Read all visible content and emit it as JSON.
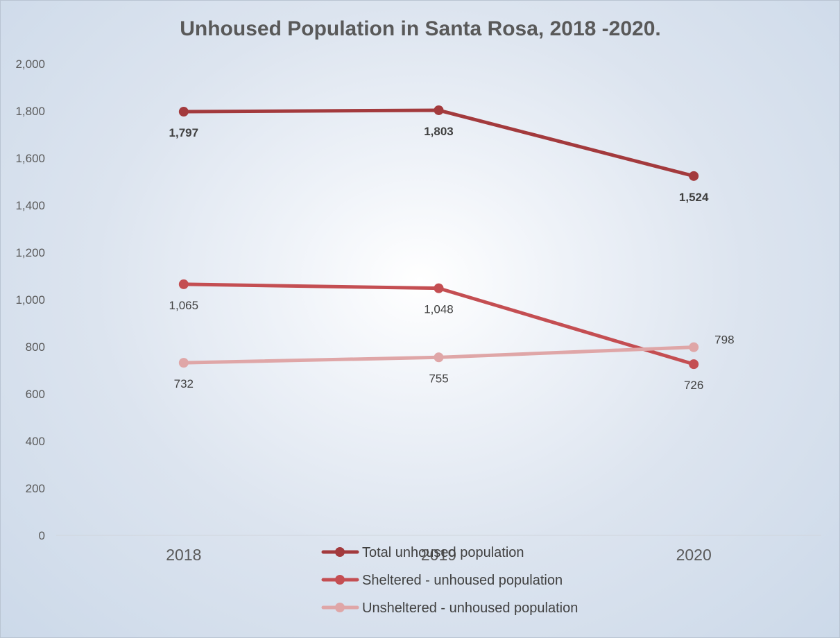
{
  "chart_data": {
    "type": "line",
    "title": "Unhoused Population in Santa Rosa, 2018 -2020.",
    "xlabel": "",
    "ylabel": "",
    "categories": [
      "2018",
      "2019",
      "2020"
    ],
    "ylim": [
      0,
      2000
    ],
    "yticks": [
      0,
      200,
      400,
      600,
      800,
      1000,
      1200,
      1400,
      1600,
      1800,
      2000
    ],
    "ytick_labels": [
      "0",
      "200",
      "400",
      "600",
      "800",
      "1,000",
      "1,200",
      "1,400",
      "1,600",
      "1,800",
      "2,000"
    ],
    "grid": false,
    "legend_position": "bottom",
    "series": [
      {
        "name": "Total unhoused population",
        "values": [
          1797,
          1803,
          1524
        ],
        "labels": [
          "1,797",
          "1,803",
          "1,524"
        ],
        "color": "#a33a3d",
        "label_bold": true
      },
      {
        "name": "Sheltered - unhoused population",
        "values": [
          1065,
          1048,
          726
        ],
        "labels": [
          "1,065",
          "1,048",
          "726"
        ],
        "color": "#c44e52",
        "label_bold": false
      },
      {
        "name": "Unsheltered - unhoused population",
        "values": [
          732,
          755,
          798
        ],
        "labels": [
          "732",
          "755",
          "798"
        ],
        "color": "#dfa6a7",
        "label_bold": false
      }
    ]
  }
}
